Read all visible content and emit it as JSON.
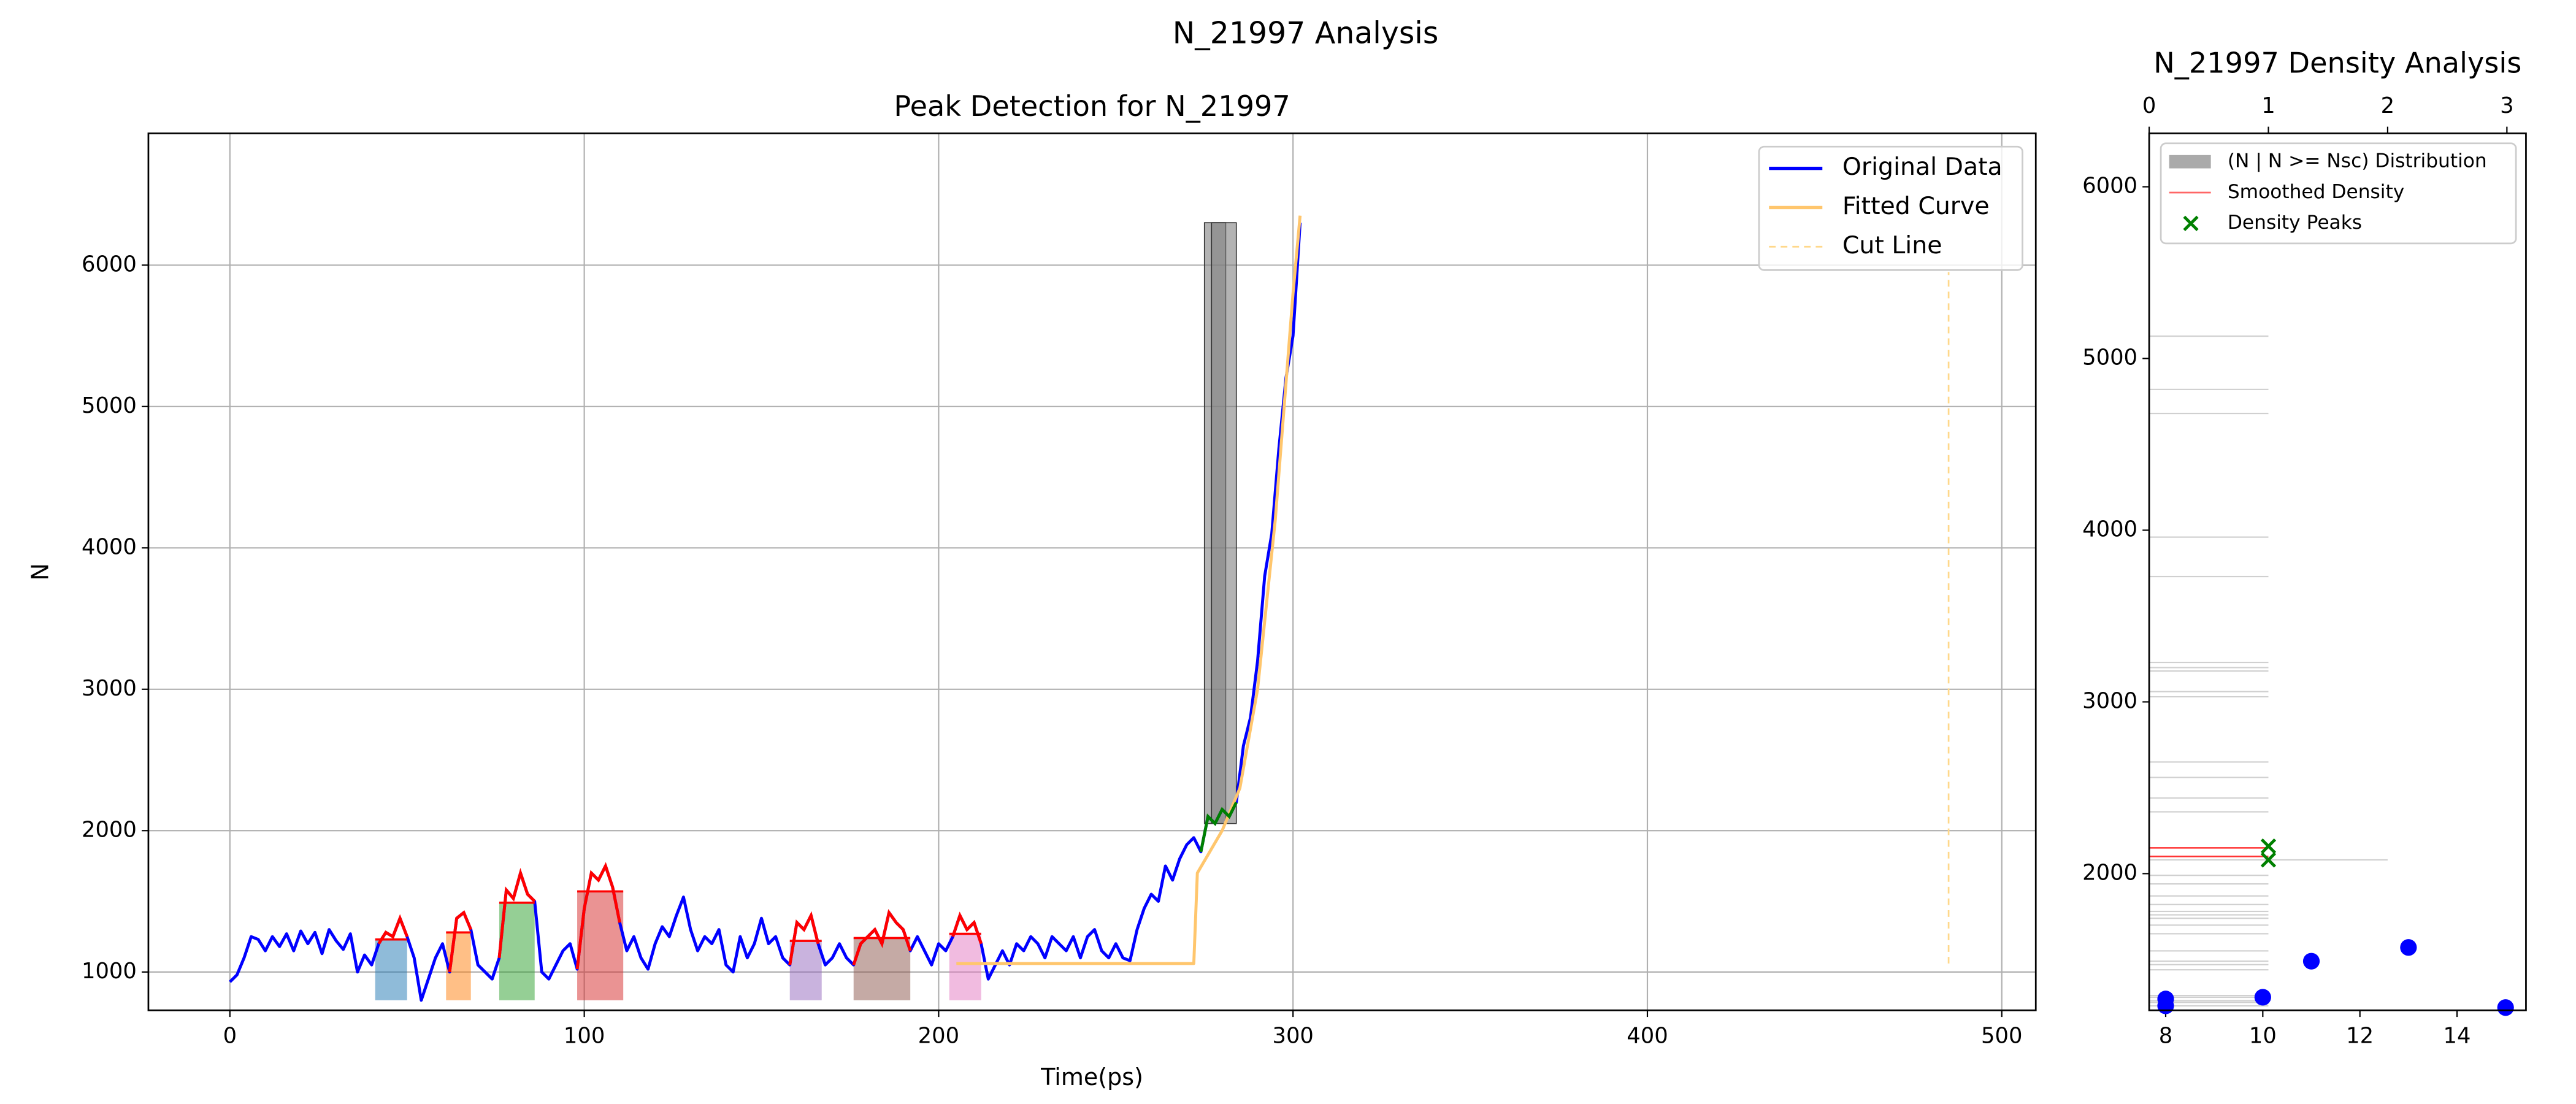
{
  "title": "N_21997 Analysis",
  "chart_data": [
    {
      "type": "line",
      "title": "Peak Detection for N_21997",
      "x_label": "Time(ps)",
      "y_label": "N",
      "xlim": [
        -23,
        509.6
      ],
      "ylim": [
        729,
        6932
      ],
      "xticks": [
        0,
        100,
        200,
        300,
        400,
        500
      ],
      "yticks": [
        1000,
        2000,
        3000,
        4000,
        5000,
        6000
      ],
      "grid": true,
      "legend": "upper right",
      "series": [
        {
          "name": "Original Data",
          "color": "#0000ff",
          "x": [
            0,
            2,
            4,
            6,
            8,
            10,
            12,
            14,
            16,
            18,
            20,
            22,
            24,
            26,
            28,
            30,
            32,
            34,
            36,
            38,
            40,
            42,
            44,
            46,
            48,
            50,
            52,
            54,
            56,
            58,
            60,
            62,
            64,
            66,
            68,
            70,
            72,
            74,
            76,
            78,
            80,
            82,
            84,
            86,
            88,
            90,
            92,
            94,
            96,
            98,
            100,
            102,
            104,
            106,
            108,
            110,
            112,
            114,
            116,
            118,
            120,
            122,
            124,
            126,
            128,
            130,
            132,
            134,
            136,
            138,
            140,
            142,
            144,
            146,
            148,
            150,
            152,
            154,
            156,
            158,
            160,
            162,
            164,
            166,
            168,
            170,
            172,
            174,
            176,
            178,
            180,
            182,
            184,
            186,
            188,
            190,
            192,
            194,
            196,
            198,
            200,
            202,
            204,
            206,
            208,
            210,
            212,
            214,
            216,
            218,
            220,
            222,
            224,
            226,
            228,
            230,
            232,
            234,
            236,
            238,
            240,
            242,
            244,
            246,
            248,
            250,
            252,
            254,
            256,
            258,
            260,
            262,
            264,
            266,
            268,
            270,
            272,
            274,
            276,
            278,
            280,
            282,
            284,
            286,
            288,
            290,
            292,
            294,
            296,
            298,
            300,
            302
          ],
          "values": [
            930,
            980,
            1100,
            1250,
            1230,
            1150,
            1250,
            1180,
            1270,
            1150,
            1290,
            1200,
            1280,
            1130,
            1300,
            1220,
            1160,
            1270,
            1000,
            1120,
            1050,
            1200,
            1280,
            1250,
            1380,
            1250,
            1100,
            800,
            950,
            1100,
            1200,
            1000,
            1380,
            1420,
            1300,
            1050,
            1000,
            950,
            1100,
            1580,
            1520,
            1700,
            1550,
            1500,
            1000,
            950,
            1050,
            1150,
            1200,
            1020,
            1450,
            1700,
            1650,
            1750,
            1600,
            1350,
            1150,
            1250,
            1100,
            1020,
            1200,
            1320,
            1250,
            1400,
            1530,
            1300,
            1150,
            1250,
            1200,
            1300,
            1050,
            1000,
            1250,
            1100,
            1200,
            1380,
            1200,
            1250,
            1100,
            1050,
            1350,
            1300,
            1400,
            1200,
            1050,
            1100,
            1200,
            1100,
            1050,
            1200,
            1250,
            1300,
            1200,
            1420,
            1350,
            1300,
            1150,
            1250,
            1150,
            1050,
            1200,
            1150,
            1250,
            1400,
            1300,
            1350,
            1200,
            950,
            1050,
            1150,
            1050,
            1200,
            1150,
            1250,
            1200,
            1100,
            1250,
            1200,
            1150,
            1250,
            1100,
            1250,
            1300,
            1150,
            1100,
            1200,
            1100,
            1080,
            1300,
            1450,
            1550,
            1500,
            1750,
            1650,
            1800,
            1900,
            1950,
            1850,
            2100,
            2050,
            2150,
            2100,
            2200,
            2600,
            2800,
            3200,
            3800,
            4100,
            4700,
            5200,
            5500,
            6300
          ]
        },
        {
          "name": "Fitted Curve",
          "color": "#ffc66d",
          "x": [
            205,
            272,
            273,
            280,
            285,
            290,
            295,
            300,
            302
          ],
          "values": [
            1060,
            1060,
            1700,
            2000,
            2300,
            3000,
            4200,
            5800,
            6350
          ]
        },
        {
          "name": "Cut Line",
          "color": "#ffd88a",
          "dashed": true,
          "x": [
            485,
            485
          ],
          "values": [
            1060,
            5950
          ]
        }
      ],
      "peak_line_color": "#ff0000",
      "fill_base": 800,
      "peaks": [
        {
          "x": [
            41,
            50
          ],
          "level": 1230,
          "color": "#1f77b4"
        },
        {
          "x": [
            61,
            68
          ],
          "level": 1280,
          "color": "#ff7f0e"
        },
        {
          "x": [
            76,
            86
          ],
          "level": 1490,
          "color": "#2ca02c"
        },
        {
          "x": [
            98,
            111
          ],
          "level": 1570,
          "color": "#d62728"
        },
        {
          "x": [
            158,
            167
          ],
          "level": 1220,
          "color": "#9467bd"
        },
        {
          "x": [
            176,
            192
          ],
          "level": 1240,
          "color": "#8c564b"
        },
        {
          "x": [
            203,
            212
          ],
          "level": 1270,
          "color": "#e377c2"
        }
      ],
      "bands": [
        {
          "x": [
            275,
            281
          ],
          "y": [
            2050,
            6300
          ],
          "color": "#808080"
        },
        {
          "x": [
            277,
            284
          ],
          "y": [
            2050,
            6300
          ],
          "color": "#808080"
        }
      ],
      "highlight": {
        "x": [
          274,
          285
        ],
        "color": "#008000"
      }
    },
    {
      "type": "barh",
      "title": "N_21997 Density Analysis",
      "xlim": [
        0,
        3.16
      ],
      "xticks": [
        0,
        1,
        2,
        3
      ],
      "x2lim": [
        7.66,
        15.42
      ],
      "x2ticks": [
        8,
        10,
        12,
        14
      ],
      "ylim": [
        1204,
        6311
      ],
      "yticks": [
        2000,
        3000,
        4000,
        5000,
        6000
      ],
      "legend": "upper left",
      "series": [
        {
          "name": "(N | N >= Nsc) Distribution",
          "color": "#aaaaaa",
          "y": [
            5130,
            4820,
            4680,
            3960,
            3730,
            3230,
            3200,
            3180,
            3060,
            3030,
            2650,
            2560,
            2440,
            2360,
            2080,
            1990,
            1940,
            1870,
            1820,
            1780,
            1760,
            1740,
            1700,
            1650,
            1550,
            1490,
            1470,
            1440,
            1290,
            1280,
            1260,
            1250,
            1230
          ],
          "values": [
            1,
            1,
            1,
            1,
            1,
            1,
            1,
            1,
            1,
            1,
            1,
            1,
            1,
            1,
            2,
            1,
            1,
            1,
            1,
            1,
            1,
            1,
            1,
            1,
            1,
            1,
            1,
            1,
            1,
            1,
            1,
            1,
            1
          ]
        },
        {
          "name": "Smoothed Density",
          "color": "#ff0000",
          "y": [
            2150,
            2100
          ],
          "values": [
            1,
            1
          ]
        },
        {
          "name": "Density Peaks",
          "color": "#008000",
          "marker": "x",
          "y": [
            2160,
            2080
          ],
          "values": [
            1,
            1
          ]
        }
      ],
      "scatter": {
        "color": "#0000ff",
        "axis": "x2",
        "x": [
          8,
          8,
          10,
          11,
          13,
          15
        ],
        "values": [
          1270,
          1230,
          1280,
          1490,
          1570,
          1220
        ]
      }
    }
  ]
}
